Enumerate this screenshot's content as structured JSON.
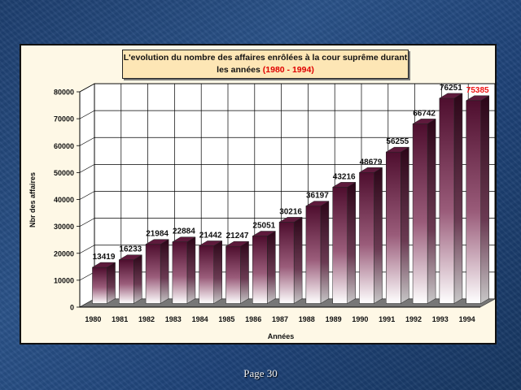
{
  "chart_data": {
    "type": "bar",
    "title_main": "L'evolution du nombre des affaires enrôlées à la cour suprême durant",
    "title_line2": "les années",
    "title_highlight": "(1980 - 1994)",
    "xlabel": "Années",
    "ylabel": "Nbr des affaires",
    "categories": [
      "1980",
      "1981",
      "1982",
      "1983",
      "1984",
      "1985",
      "1986",
      "1987",
      "1988",
      "1989",
      "1990",
      "1991",
      "1992",
      "1993",
      "1994"
    ],
    "values": [
      13419,
      16233,
      21984,
      22884,
      21442,
      21247,
      25051,
      30216,
      36197,
      43216,
      48679,
      56255,
      66742,
      76251,
      75385
    ],
    "value_labels": [
      "13419",
      "16233",
      "21984",
      "22884",
      "21442",
      "21247",
      "25051",
      "30216",
      "36197",
      "43216",
      "48679",
      "56255",
      "66742",
      "76251",
      "75385"
    ],
    "highlight_label_index": 14,
    "yticks": [
      0,
      10000,
      20000,
      30000,
      40000,
      50000,
      60000,
      70000,
      80000
    ],
    "ylim": [
      0,
      80000
    ],
    "grid": true,
    "colors": {
      "bar_top": "#4e0e2e",
      "bar_bottom": "#ffffff",
      "highlight": "#ee1111",
      "floor": "#777777"
    }
  },
  "footer": {
    "page_label": "Page 30"
  }
}
